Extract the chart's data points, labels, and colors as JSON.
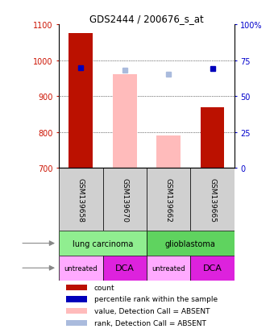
{
  "title": "GDS2444 / 200676_s_at",
  "samples": [
    "GSM139658",
    "GSM139670",
    "GSM139662",
    "GSM139665"
  ],
  "ylim_left": [
    700,
    1100
  ],
  "ylim_right": [
    0,
    100
  ],
  "yticks_left": [
    700,
    800,
    900,
    1000,
    1100
  ],
  "yticks_right": [
    0,
    25,
    50,
    75,
    100
  ],
  "ytick_labels_right": [
    "0",
    "25",
    "50",
    "75",
    "100%"
  ],
  "count_bars": {
    "GSM139658": 1075,
    "GSM139670": null,
    "GSM139662": null,
    "GSM139665": 870
  },
  "value_absent_bars": {
    "GSM139658": null,
    "GSM139670": 960,
    "GSM139662": 790,
    "GSM139665": null
  },
  "percentile_rank_dots": {
    "GSM139658": 70,
    "GSM139670": null,
    "GSM139662": null,
    "GSM139665": 69
  },
  "rank_absent_dots": {
    "GSM139658": null,
    "GSM139670": 68,
    "GSM139662": 65,
    "GSM139665": null
  },
  "cell_types": [
    {
      "label": "lung carcinoma",
      "color": "#90EE90",
      "span": [
        0,
        2
      ]
    },
    {
      "label": "glioblastoma",
      "color": "#5FD35F",
      "span": [
        2,
        4
      ]
    }
  ],
  "agents": [
    {
      "label": "untreated",
      "color": "#FFAAFF",
      "span": [
        0,
        1
      ]
    },
    {
      "label": "DCA",
      "color": "#DD22DD",
      "span": [
        1,
        2
      ]
    },
    {
      "label": "untreated",
      "color": "#FFAAFF",
      "span": [
        2,
        3
      ]
    },
    {
      "label": "DCA",
      "color": "#DD22DD",
      "span": [
        3,
        4
      ]
    }
  ],
  "bar_color_red": "#BB1100",
  "bar_color_pink": "#FFBBBB",
  "dot_color_blue": "#0000BB",
  "dot_color_lightblue": "#AABBDD",
  "label_color_left": "#CC1100",
  "label_color_right": "#0000CC",
  "bg_color": "#ffffff",
  "legend_items": [
    {
      "color": "#BB1100",
      "label": "count"
    },
    {
      "color": "#0000BB",
      "label": "percentile rank within the sample"
    },
    {
      "color": "#FFBBBB",
      "label": "value, Detection Call = ABSENT"
    },
    {
      "color": "#AABBDD",
      "label": "rank, Detection Call = ABSENT"
    }
  ]
}
